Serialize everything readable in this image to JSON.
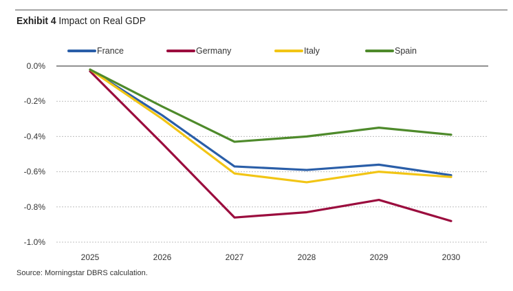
{
  "header": {
    "exhibit_label": "Exhibit 4",
    "title": "Impact on Real GDP"
  },
  "footer": {
    "source": "Source: Morningstar DBRS calculation."
  },
  "chart_data": {
    "type": "line",
    "title": "Impact on Real GDP",
    "xlabel": "",
    "ylabel": "",
    "categories": [
      "2025",
      "2026",
      "2027",
      "2028",
      "2029",
      "2030"
    ],
    "ylim": [
      -1.0,
      0.0
    ],
    "yticks": [
      0.0,
      -0.2,
      -0.4,
      -0.6,
      -0.8,
      -1.0
    ],
    "ytick_labels": [
      "0.0%",
      "-0.2%",
      "-0.4%",
      "-0.6%",
      "-0.8%",
      "-1.0%"
    ],
    "grid": "horizontal dashed",
    "legend_position": "top",
    "series": [
      {
        "name": "France",
        "color": "#2a5ea8",
        "values": [
          -0.02,
          -0.28,
          -0.57,
          -0.59,
          -0.56,
          -0.62
        ]
      },
      {
        "name": "Germany",
        "color": "#9b0d3e",
        "values": [
          -0.03,
          -0.44,
          -0.86,
          -0.83,
          -0.76,
          -0.88
        ]
      },
      {
        "name": "Italy",
        "color": "#f2c515",
        "values": [
          -0.02,
          -0.3,
          -0.61,
          -0.66,
          -0.6,
          -0.63
        ]
      },
      {
        "name": "Spain",
        "color": "#4e8a2b",
        "values": [
          -0.02,
          -0.23,
          -0.43,
          -0.4,
          -0.35,
          -0.39
        ]
      }
    ]
  }
}
